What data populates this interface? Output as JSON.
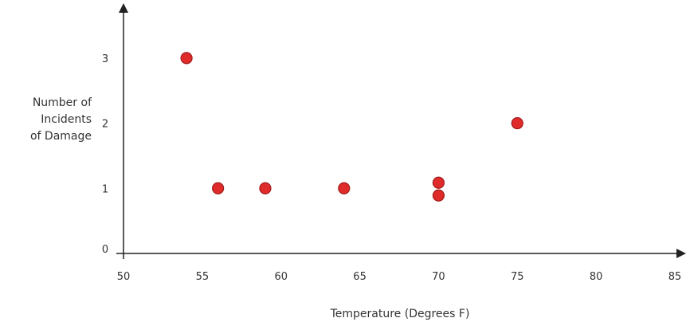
{
  "chart_data": {
    "type": "scatter",
    "title": "",
    "xlabel": "Temperature (Degrees F)",
    "ylabel_lines": [
      "Number of",
      "Incidents",
      "of Damage"
    ],
    "xlim": [
      50,
      85
    ],
    "ylim": [
      0,
      3.5
    ],
    "xticks": [
      50,
      55,
      60,
      65,
      70,
      75,
      80,
      85
    ],
    "yticks": [
      0,
      1,
      2,
      3
    ],
    "grid": false,
    "point_color": "#e02b2b",
    "series": [
      {
        "points": [
          {
            "x": 54,
            "y": 3
          },
          {
            "x": 56,
            "y": 1
          },
          {
            "x": 59,
            "y": 1
          },
          {
            "x": 64,
            "y": 1
          },
          {
            "x": 70,
            "y": 1
          },
          {
            "x": 70,
            "y": 1
          },
          {
            "x": 75,
            "y": 2
          }
        ]
      }
    ]
  }
}
